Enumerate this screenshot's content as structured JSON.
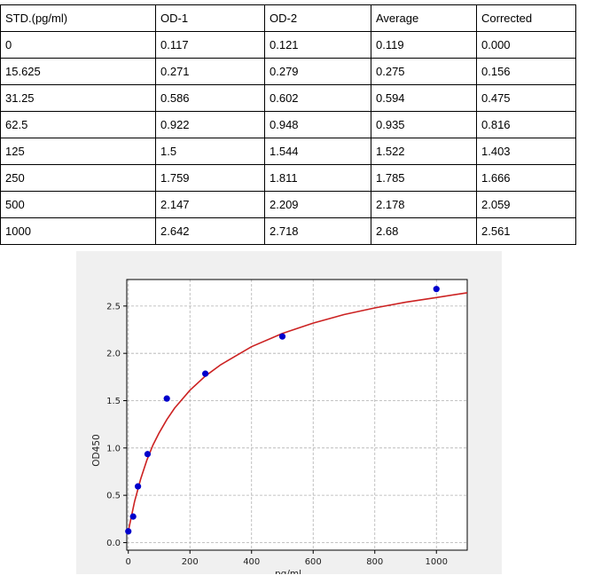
{
  "table": {
    "headers": [
      "STD.(pg/ml)",
      "OD-1",
      "OD-2",
      "Average",
      "Corrected"
    ],
    "rows": [
      [
        "0",
        "0.117",
        "0.121",
        "0.119",
        "0.000"
      ],
      [
        "15.625",
        "0.271",
        "0.279",
        "0.275",
        "0.156"
      ],
      [
        "31.25",
        "0.586",
        "0.602",
        "0.594",
        "0.475"
      ],
      [
        "62.5",
        "0.922",
        "0.948",
        "0.935",
        "0.816"
      ],
      [
        "125",
        "1.5",
        "1.544",
        "1.522",
        "1.403"
      ],
      [
        "250",
        "1.759",
        "1.811",
        "1.785",
        "1.666"
      ],
      [
        "500",
        "2.147",
        "2.209",
        "2.178",
        "2.059"
      ],
      [
        "1000",
        "2.642",
        "2.718",
        "2.68",
        "2.561"
      ]
    ]
  },
  "chart_data": {
    "type": "scatter",
    "title": "",
    "xlabel": "pg/ml",
    "ylabel": "OD450",
    "xlim": [
      -5,
      1100
    ],
    "ylim": [
      -0.08,
      2.78
    ],
    "xticks": [
      0,
      200,
      400,
      600,
      800,
      1000
    ],
    "yticks": [
      0.0,
      0.5,
      1.0,
      1.5,
      2.0,
      2.5
    ],
    "xtick_labels": [
      "0",
      "200",
      "400",
      "600",
      "800",
      "1000"
    ],
    "ytick_labels": [
      "0.0",
      "0.5",
      "1.0",
      "1.5",
      "2.0",
      "2.5"
    ],
    "grid": true,
    "points": {
      "x": [
        0,
        15.625,
        31.25,
        62.5,
        125,
        250,
        500,
        1000
      ],
      "y": [
        0.119,
        0.275,
        0.594,
        0.935,
        1.522,
        1.785,
        2.178,
        2.68
      ],
      "color": "#0000cc"
    },
    "fit_curve": {
      "x": [
        0,
        20,
        40,
        60,
        80,
        100,
        125,
        150,
        200,
        250,
        300,
        400,
        500,
        600,
        700,
        800,
        900,
        1000,
        1100
      ],
      "y": [
        0.12,
        0.43,
        0.67,
        0.87,
        1.03,
        1.16,
        1.3,
        1.42,
        1.61,
        1.76,
        1.88,
        2.07,
        2.21,
        2.32,
        2.41,
        2.48,
        2.54,
        2.59,
        2.64
      ],
      "color": "#cc2222"
    }
  }
}
